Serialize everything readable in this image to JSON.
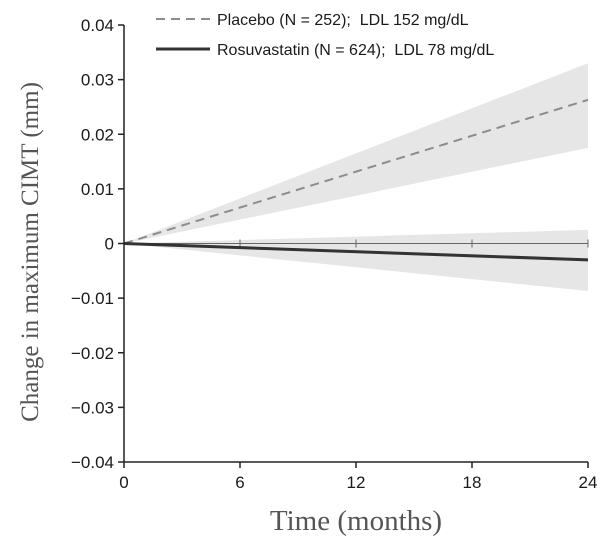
{
  "chart_data": {
    "type": "line",
    "title": "",
    "xlabel": "Time (months)",
    "ylabel": "Change in maximum CIMT (mm)",
    "xlim": [
      0,
      24
    ],
    "ylim": [
      -0.04,
      0.04
    ],
    "x_ticks": [
      "0",
      "6",
      "12",
      "18",
      "24"
    ],
    "y_ticks": [
      "0.04",
      "0.03",
      "0.02",
      "0.01",
      "0",
      "−0.01",
      "−0.02",
      "−0.03",
      "−0.04"
    ],
    "legend_position": "top",
    "grid": false,
    "series": [
      {
        "name": "Placebo (N = 252);  LDL 152 mg/dL",
        "style": "dashed",
        "color": "#8c8c8c",
        "x": [
          0,
          24
        ],
        "y": [
          0,
          0.0263
        ],
        "ci_upper": [
          0,
          0.033
        ],
        "ci_lower": [
          0,
          0.0175
        ]
      },
      {
        "name": "Rosuvastatin (N = 624);  LDL 78 mg/dL",
        "style": "solid",
        "color": "#333333",
        "x": [
          0,
          24
        ],
        "y": [
          0,
          -0.003
        ],
        "ci_upper": [
          0,
          0.0025
        ],
        "ci_lower": [
          0,
          -0.0087
        ]
      }
    ],
    "colors": {
      "band": "#e6e6e6",
      "axis": "#222222"
    }
  }
}
